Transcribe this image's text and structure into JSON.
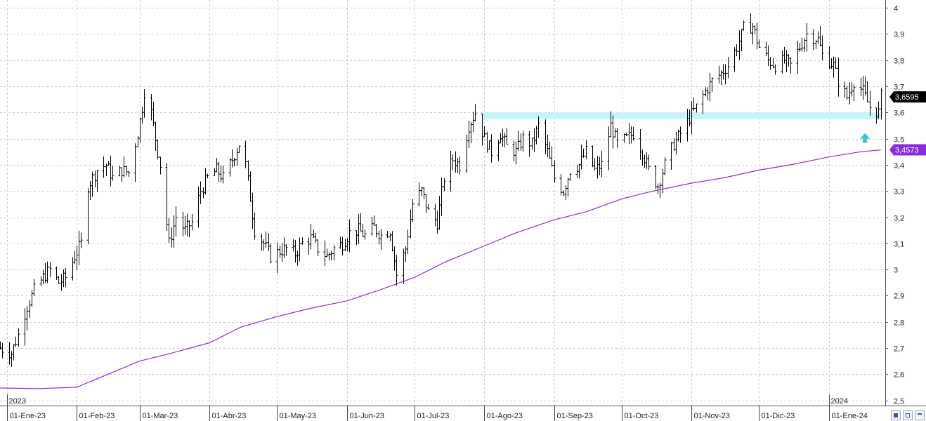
{
  "chart_data": {
    "type": "ohlc",
    "yticks": [
      "4",
      "3,9",
      "3,8",
      "3,7",
      "3,6",
      "3,5",
      "3,4",
      "3,3",
      "3,2",
      "3,1",
      "3",
      "2,9",
      "2,8",
      "2,7",
      "2,6",
      "2,5"
    ],
    "ytick_values": [
      4.0,
      3.9,
      3.8,
      3.7,
      3.6,
      3.5,
      3.4,
      3.3,
      3.2,
      3.1,
      3.0,
      2.9,
      2.8,
      2.7,
      2.6,
      2.5
    ],
    "ylim": [
      2.48,
      4.03
    ],
    "xlim": [
      "2022-12-29",
      "2024-01-26"
    ],
    "month_labels": [
      {
        "date": "2023-01-01",
        "label": "01-Ene-23"
      },
      {
        "date": "2023-02-01",
        "label": "01-Feb-23"
      },
      {
        "date": "2023-03-01",
        "label": "01-Mar-23"
      },
      {
        "date": "2023-04-01",
        "label": "01-Abr-23"
      },
      {
        "date": "2023-05-01",
        "label": "01-May-23"
      },
      {
        "date": "2023-06-01",
        "label": "01-Jun-23"
      },
      {
        "date": "2023-07-01",
        "label": "01-Jul-23"
      },
      {
        "date": "2023-08-01",
        "label": "01-Ago-23"
      },
      {
        "date": "2023-09-01",
        "label": "01-Sep-23"
      },
      {
        "date": "2023-10-01",
        "label": "01-Oct-23"
      },
      {
        "date": "2023-11-01",
        "label": "01-Nov-23"
      },
      {
        "date": "2023-12-01",
        "label": "01-Dic-23"
      },
      {
        "date": "2024-01-01",
        "label": "01-Ene-24"
      }
    ],
    "year_labels": [
      {
        "date": "2023-01-01",
        "label": "2023"
      },
      {
        "date": "2024-01-01",
        "label": "2024"
      }
    ],
    "close_path": [
      [
        "2022-12-29",
        2.7
      ],
      [
        "2023-01-03",
        2.68
      ],
      [
        "2023-01-06",
        2.75
      ],
      [
        "2023-01-10",
        2.86
      ],
      [
        "2023-01-13",
        2.92
      ],
      [
        "2023-01-17",
        2.97
      ],
      [
        "2023-01-20",
        3.0
      ],
      [
        "2023-01-24",
        2.95
      ],
      [
        "2023-01-27",
        2.97
      ],
      [
        "2023-01-31",
        3.05
      ],
      [
        "2023-02-03",
        3.1
      ],
      [
        "2023-02-06",
        3.32
      ],
      [
        "2023-02-10",
        3.38
      ],
      [
        "2023-02-14",
        3.4
      ],
      [
        "2023-02-17",
        3.35
      ],
      [
        "2023-02-21",
        3.38
      ],
      [
        "2023-02-24",
        3.37
      ],
      [
        "2023-02-28",
        3.52
      ],
      [
        "2023-03-02",
        3.62
      ],
      [
        "2023-03-03",
        3.68
      ],
      [
        "2023-03-06",
        3.6
      ],
      [
        "2023-03-10",
        3.4
      ],
      [
        "2023-03-14",
        3.1
      ],
      [
        "2023-03-17",
        3.2
      ],
      [
        "2023-03-21",
        3.15
      ],
      [
        "2023-03-24",
        3.18
      ],
      [
        "2023-03-28",
        3.3
      ],
      [
        "2023-03-31",
        3.35
      ],
      [
        "2023-04-04",
        3.38
      ],
      [
        "2023-04-07",
        3.35
      ],
      [
        "2023-04-11",
        3.42
      ],
      [
        "2023-04-14",
        3.48
      ],
      [
        "2023-04-17",
        3.4
      ],
      [
        "2023-04-21",
        3.15
      ],
      [
        "2023-04-25",
        3.1
      ],
      [
        "2023-04-28",
        3.05
      ],
      [
        "2023-05-02",
        3.07
      ],
      [
        "2023-05-05",
        3.08
      ],
      [
        "2023-05-09",
        3.06
      ],
      [
        "2023-05-12",
        3.1
      ],
      [
        "2023-05-16",
        3.12
      ],
      [
        "2023-05-19",
        3.08
      ],
      [
        "2023-05-23",
        3.05
      ],
      [
        "2023-05-26",
        3.08
      ],
      [
        "2023-05-30",
        3.1
      ],
      [
        "2023-06-02",
        3.14
      ],
      [
        "2023-06-06",
        3.15
      ],
      [
        "2023-06-09",
        3.13
      ],
      [
        "2023-06-13",
        3.16
      ],
      [
        "2023-06-16",
        3.13
      ],
      [
        "2023-06-20",
        3.15
      ],
      [
        "2023-06-23",
        2.98
      ],
      [
        "2023-06-27",
        3.08
      ],
      [
        "2023-06-30",
        3.25
      ],
      [
        "2023-07-04",
        3.3
      ],
      [
        "2023-07-07",
        3.22
      ],
      [
        "2023-07-11",
        3.18
      ],
      [
        "2023-07-14",
        3.35
      ],
      [
        "2023-07-18",
        3.42
      ],
      [
        "2023-07-21",
        3.4
      ],
      [
        "2023-07-25",
        3.55
      ],
      [
        "2023-07-28",
        3.6
      ],
      [
        "2023-08-01",
        3.5
      ],
      [
        "2023-08-04",
        3.45
      ],
      [
        "2023-08-08",
        3.52
      ],
      [
        "2023-08-11",
        3.47
      ],
      [
        "2023-08-15",
        3.45
      ],
      [
        "2023-08-18",
        3.5
      ],
      [
        "2023-08-22",
        3.48
      ],
      [
        "2023-08-25",
        3.55
      ],
      [
        "2023-08-29",
        3.45
      ],
      [
        "2023-09-01",
        3.35
      ],
      [
        "2023-09-05",
        3.3
      ],
      [
        "2023-09-08",
        3.38
      ],
      [
        "2023-09-12",
        3.4
      ],
      [
        "2023-09-15",
        3.45
      ],
      [
        "2023-09-19",
        3.38
      ],
      [
        "2023-09-22",
        3.4
      ],
      [
        "2023-09-26",
        3.55
      ],
      [
        "2023-09-29",
        3.48
      ],
      [
        "2023-10-03",
        3.5
      ],
      [
        "2023-10-06",
        3.52
      ],
      [
        "2023-10-10",
        3.45
      ],
      [
        "2023-10-13",
        3.38
      ],
      [
        "2023-10-17",
        3.32
      ],
      [
        "2023-10-20",
        3.4
      ],
      [
        "2023-10-24",
        3.48
      ],
      [
        "2023-10-27",
        3.52
      ],
      [
        "2023-10-31",
        3.58
      ],
      [
        "2023-11-03",
        3.62
      ],
      [
        "2023-11-07",
        3.68
      ],
      [
        "2023-11-10",
        3.72
      ],
      [
        "2023-11-14",
        3.75
      ],
      [
        "2023-11-17",
        3.78
      ],
      [
        "2023-11-21",
        3.85
      ],
      [
        "2023-11-24",
        3.92
      ],
      [
        "2023-11-28",
        3.93
      ],
      [
        "2023-12-01",
        3.85
      ],
      [
        "2023-12-05",
        3.8
      ],
      [
        "2023-12-08",
        3.78
      ],
      [
        "2023-12-12",
        3.8
      ],
      [
        "2023-12-15",
        3.78
      ],
      [
        "2023-12-19",
        3.85
      ],
      [
        "2023-12-22",
        3.9
      ],
      [
        "2023-12-27",
        3.88
      ],
      [
        "2023-12-29",
        3.82
      ],
      [
        "2024-01-03",
        3.78
      ],
      [
        "2024-01-05",
        3.72
      ],
      [
        "2024-01-09",
        3.66
      ],
      [
        "2024-01-12",
        3.72
      ],
      [
        "2024-01-16",
        3.68
      ],
      [
        "2024-01-19",
        3.62
      ],
      [
        "2024-01-23",
        3.6
      ],
      [
        "2024-01-24",
        3.66
      ]
    ],
    "moving_average": {
      "color": "#8a2be2",
      "points": [
        [
          "2022-12-29",
          2.547
        ],
        [
          "2023-01-15",
          2.545
        ],
        [
          "2023-02-01",
          2.55
        ],
        [
          "2023-02-15",
          2.6
        ],
        [
          "2023-03-01",
          2.65
        ],
        [
          "2023-03-15",
          2.68
        ],
        [
          "2023-04-01",
          2.72
        ],
        [
          "2023-04-15",
          2.78
        ],
        [
          "2023-05-01",
          2.82
        ],
        [
          "2023-05-15",
          2.85
        ],
        [
          "2023-06-01",
          2.88
        ],
        [
          "2023-06-15",
          2.92
        ],
        [
          "2023-07-01",
          2.97
        ],
        [
          "2023-07-15",
          3.03
        ],
        [
          "2023-08-01",
          3.09
        ],
        [
          "2023-08-15",
          3.14
        ],
        [
          "2023-09-01",
          3.19
        ],
        [
          "2023-09-15",
          3.22
        ],
        [
          "2023-10-01",
          3.27
        ],
        [
          "2023-10-15",
          3.3
        ],
        [
          "2023-11-01",
          3.33
        ],
        [
          "2023-11-15",
          3.35
        ],
        [
          "2023-12-01",
          3.38
        ],
        [
          "2023-12-15",
          3.4
        ],
        [
          "2024-01-01",
          3.43
        ],
        [
          "2024-01-15",
          3.45
        ],
        [
          "2024-01-24",
          3.457
        ]
      ]
    },
    "support_band": {
      "from": "2023-07-31",
      "to": "2024-01-24",
      "y_low": 3.575,
      "y_high": 3.6,
      "color": "#c6f5f8"
    },
    "arrow_marker": {
      "date": "2024-01-17",
      "y": 3.5,
      "color": "#3cc6c6"
    },
    "last_price": {
      "value": 3.6595,
      "label": "3,6595",
      "color": "#000000"
    },
    "ma_value": {
      "value": 3.4573,
      "label": "3,4573",
      "color": "#8a2be2"
    },
    "bar_color": "#000000",
    "grid": true,
    "grid_color": "#c8ccd4"
  },
  "toolbar": {
    "icons": [
      "save-icon",
      "restore-icon",
      "pin-icon"
    ]
  }
}
